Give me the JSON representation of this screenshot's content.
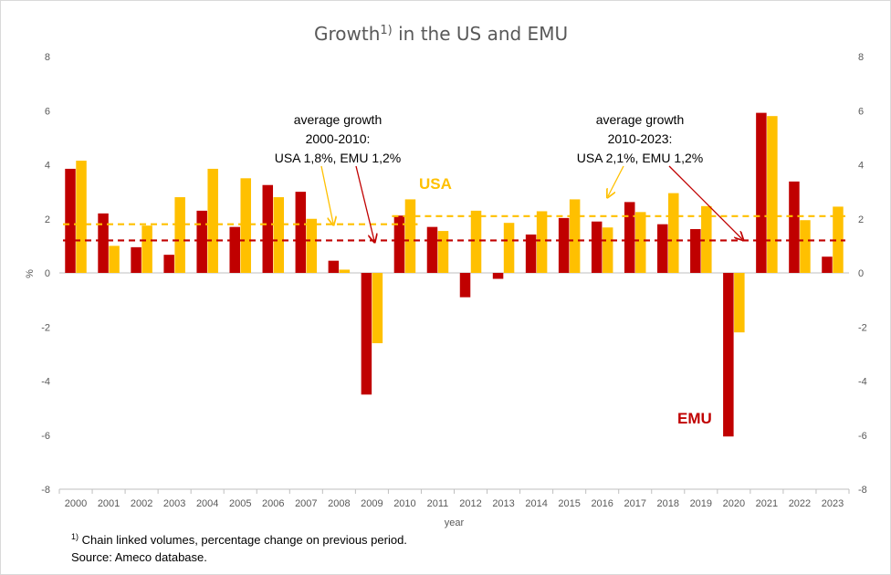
{
  "chart_data": {
    "type": "bar",
    "title": "Growth",
    "title_superscript": "1)",
    "title_rest": " in the US and EMU",
    "xlabel": "year",
    "ylabel": "%",
    "ylim": [
      -8,
      8
    ],
    "yticks": [
      -8,
      -6,
      -4,
      -2,
      0,
      2,
      4,
      6,
      8
    ],
    "grid": false,
    "categories": [
      "2000",
      "2001",
      "2002",
      "2003",
      "2004",
      "2005",
      "2006",
      "2007",
      "2008",
      "2009",
      "2010",
      "2011",
      "2012",
      "2013",
      "2014",
      "2015",
      "2016",
      "2017",
      "2018",
      "2019",
      "2020",
      "2021",
      "2022",
      "2023"
    ],
    "series": [
      {
        "name": "EMU",
        "color": "#C00000",
        "values": [
          3.85,
          2.2,
          0.95,
          0.67,
          2.3,
          1.7,
          3.25,
          3.0,
          0.45,
          -4.5,
          2.12,
          1.7,
          -0.9,
          -0.22,
          1.42,
          2.03,
          1.9,
          2.62,
          1.8,
          1.62,
          -6.05,
          5.92,
          3.38,
          0.6
        ]
      },
      {
        "name": "USA",
        "color": "#FFC000",
        "values": [
          4.15,
          1.0,
          1.75,
          2.8,
          3.85,
          3.5,
          2.8,
          2.0,
          0.12,
          -2.6,
          2.72,
          1.55,
          2.3,
          1.85,
          2.28,
          2.72,
          1.68,
          2.25,
          2.95,
          2.47,
          -2.2,
          5.8,
          1.95,
          2.45
        ]
      }
    ],
    "averages": [
      {
        "series": "USA",
        "from": "2000",
        "to": "2010",
        "value": 1.8,
        "color": "#FFC000"
      },
      {
        "series": "USA",
        "from": "2010",
        "to": "2023",
        "value": 2.1,
        "color": "#FFC000"
      },
      {
        "series": "EMU",
        "from": "2000",
        "to": "2023",
        "value": 1.2,
        "color": "#C00000"
      }
    ],
    "series_labels": [
      {
        "text": "USA",
        "color": "#FFC000"
      },
      {
        "text": "EMU",
        "color": "#C00000"
      }
    ],
    "annotations": [
      {
        "lines": [
          "average growth",
          "2000-2010:",
          "USA 1,8%, EMU 1,2%"
        ]
      },
      {
        "lines": [
          "average growth",
          "2010-2023:",
          "USA 2,1%, EMU 1,2%"
        ]
      }
    ],
    "footnotes": {
      "superscript": "1)",
      "note": " Chain linked volumes, percentage change on previous period.",
      "source": "Source: Ameco database."
    }
  }
}
